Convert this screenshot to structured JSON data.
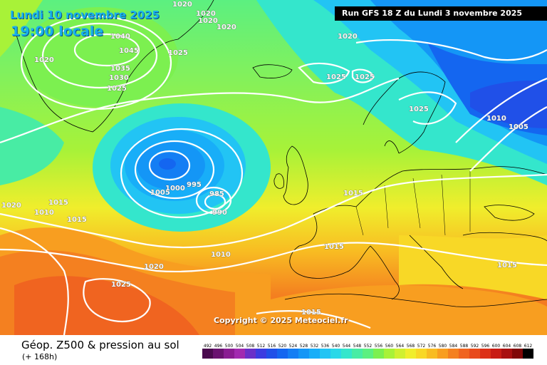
{
  "title": {
    "date": "Lundi 10 novembre 2025",
    "local_time": "19:00 locale",
    "run_info": "Run GFS 18 Z du Lundi 3 novembre 2025"
  },
  "copyright": "Copyright © 2025 Meteociel.fr",
  "parameter": {
    "label": "Géop. Z500 & pression au sol",
    "lead_time": "(+ 168h)"
  },
  "legend": {
    "values": [
      "492",
      "496",
      "500",
      "504",
      "508",
      "512",
      "516",
      "520",
      "524",
      "528",
      "532",
      "536",
      "540",
      "544",
      "548",
      "552",
      "556",
      "560",
      "564",
      "568",
      "572",
      "576",
      "580",
      "584",
      "588",
      "592",
      "596",
      "600",
      "604",
      "608",
      "612"
    ],
    "colors": [
      "#4a0a4e",
      "#6a1270",
      "#8a1c92",
      "#a22ab0",
      "#6a30c8",
      "#3c3ce0",
      "#2050e8",
      "#1466f0",
      "#147ef4",
      "#1496f6",
      "#18aef8",
      "#22c4f4",
      "#2ad8e8",
      "#34e6cc",
      "#48eca4",
      "#5cf080",
      "#7cf050",
      "#a8f238",
      "#d0f030",
      "#f0ee2c",
      "#f8d826",
      "#f8bc22",
      "#f89e20",
      "#f48020",
      "#f06420",
      "#e84a1c",
      "#dc3018",
      "#c81c14",
      "#a81010",
      "#800808",
      "#000000"
    ]
  },
  "pressure_labels": [
    {
      "v": "1020"
    },
    {
      "v": "1020"
    },
    {
      "v": "1020"
    },
    {
      "v": "1020"
    },
    {
      "v": "1040"
    },
    {
      "v": "1045"
    },
    {
      "v": "1025"
    },
    {
      "v": "1035"
    },
    {
      "v": "1030"
    },
    {
      "v": "1025"
    },
    {
      "v": "1020"
    },
    {
      "v": "1025"
    },
    {
      "v": "1025"
    },
    {
      "v": "1020"
    },
    {
      "v": "1025"
    },
    {
      "v": "1010"
    },
    {
      "v": "1005"
    },
    {
      "v": "1005"
    },
    {
      "v": "1000"
    },
    {
      "v": "995"
    },
    {
      "v": "985"
    },
    {
      "v": "990"
    },
    {
      "v": "1015"
    },
    {
      "v": "1015"
    },
    {
      "v": "1010"
    },
    {
      "v": "1020"
    },
    {
      "v": "1010"
    },
    {
      "v": "1020"
    },
    {
      "v": "1015"
    },
    {
      "v": "1025"
    },
    {
      "v": "1015"
    },
    {
      "v": "1015"
    },
    {
      "v": "1015"
    }
  ]
}
